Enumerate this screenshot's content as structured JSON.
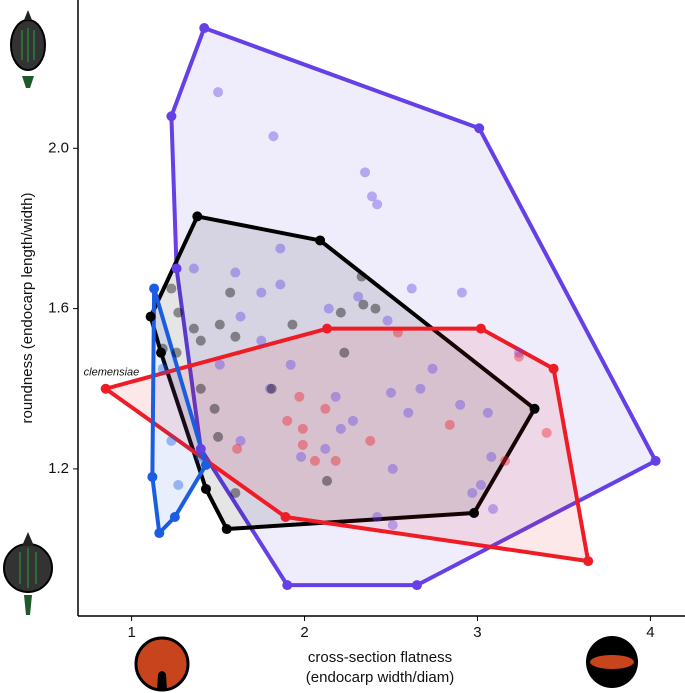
{
  "chart_data": {
    "type": "scatter",
    "ylabel": "roundness (endocarp length/width)",
    "xlabel": [
      "cross-section flatness",
      "(endocarp width/diam)"
    ],
    "annotation": "clemensiae",
    "xlim": [
      0.69,
      4.2
    ],
    "ylim": [
      0.833,
      2.37
    ],
    "xticks": [
      1,
      2,
      3,
      4
    ],
    "yticks": [
      {
        "value": 1.2,
        "label": "1.2"
      },
      {
        "value": 1.6,
        "label": "1.6"
      },
      {
        "value": 2,
        "label": "2.0"
      }
    ],
    "series": [
      {
        "color": "#6440e6",
        "x": [
          1.42,
          1.23,
          3.01,
          4.03,
          2.65,
          1.9,
          1.5,
          1.82,
          2.35,
          2.39,
          2.42,
          1.36,
          1.26,
          1.6,
          1.86,
          1.75,
          2.14,
          2.31,
          2.62,
          2.91,
          2.48,
          1.63,
          1.75,
          1.51,
          1.92,
          1.8,
          2.18,
          2.28,
          2.5,
          2.67,
          2.74,
          2.6,
          2.9,
          3.06,
          3.24,
          2.12,
          1.98,
          2.51,
          3.02,
          3.09,
          1.63,
          1.86,
          2.21,
          2.97,
          3.08,
          1.4,
          2.42,
          2.51
        ],
        "y": [
          2.3,
          2.08,
          2.05,
          1.22,
          0.91,
          0.91,
          2.14,
          2.03,
          1.94,
          1.88,
          1.86,
          1.7,
          1.7,
          1.69,
          1.66,
          1.64,
          1.6,
          1.63,
          1.65,
          1.64,
          1.57,
          1.58,
          1.52,
          1.46,
          1.46,
          1.4,
          1.38,
          1.32,
          1.39,
          1.4,
          1.45,
          1.34,
          1.36,
          1.34,
          1.49,
          1.25,
          1.23,
          1.2,
          1.16,
          1.1,
          1.27,
          1.75,
          1.3,
          1.14,
          1.23,
          1.25,
          1.08,
          1.06
        ]
      },
      {
        "color": "#000000",
        "x": [
          1.38,
          2.09,
          3.33,
          2.98,
          1.55,
          1.11,
          1.18,
          2.41,
          2.23,
          1.5,
          1.43,
          1.17,
          1.23,
          1.36,
          1.4,
          1.27,
          1.51,
          1.6,
          1.26,
          1.4,
          1.48,
          1.81,
          1.93,
          2.21,
          2.34,
          2.33,
          1.6,
          2.13,
          1.57
        ],
        "y": [
          1.83,
          1.77,
          1.35,
          1.09,
          1.05,
          1.58,
          1.5,
          1.6,
          1.49,
          1.28,
          1.15,
          1.49,
          1.65,
          1.55,
          1.52,
          1.59,
          1.56,
          1.53,
          1.49,
          1.4,
          1.35,
          1.4,
          1.56,
          1.59,
          1.61,
          1.68,
          1.14,
          1.17,
          1.64
        ]
      },
      {
        "color": "#ee1c25",
        "x": [
          0.85,
          2.13,
          3.02,
          3.44,
          3.64,
          1.89,
          2.54,
          1.9,
          1.99,
          2.18,
          3.16,
          1.61,
          1.97,
          2.12,
          2.38,
          2.06,
          1.99,
          2.84,
          3.4,
          3.24
        ],
        "y": [
          1.4,
          1.55,
          1.55,
          1.45,
          0.97,
          1.08,
          1.54,
          1.32,
          1.3,
          1.22,
          1.22,
          1.25,
          1.38,
          1.35,
          1.27,
          1.22,
          1.26,
          1.31,
          1.29,
          1.48
        ]
      },
      {
        "color": "#1a5de0",
        "x": [
          1.13,
          1.18,
          1.12,
          1.16,
          1.43,
          1.25,
          1.27,
          1.23,
          1.4
        ],
        "y": [
          1.65,
          1.45,
          1.18,
          1.04,
          1.21,
          1.08,
          1.16,
          1.27,
          1.23
        ]
      }
    ]
  }
}
